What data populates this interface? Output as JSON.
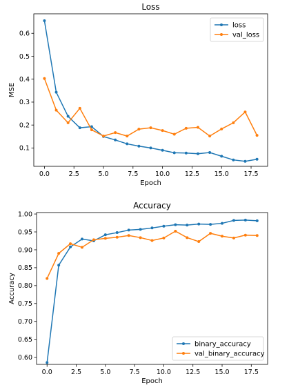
{
  "chart_data": [
    {
      "type": "line",
      "title": "Loss",
      "xlabel": "Epoch",
      "ylabel": "MSE",
      "xlim": [
        -0.9,
        18.9
      ],
      "ylim": [
        0.02,
        0.685
      ],
      "xticks": [
        0,
        2.5,
        5,
        7.5,
        10,
        12.5,
        15,
        17.5
      ],
      "xtick_labels": [
        "0.0",
        "2.5",
        "5.0",
        "7.5",
        "10.0",
        "12.5",
        "15.0",
        "17.5"
      ],
      "yticks": [
        0.1,
        0.2,
        0.3,
        0.4,
        0.5,
        0.6
      ],
      "ytick_labels": [
        "0.1",
        "0.2",
        "0.3",
        "0.4",
        "0.5",
        "0.6"
      ],
      "grid": false,
      "legend": "top-right",
      "x": [
        0,
        1,
        2,
        3,
        4,
        5,
        6,
        7,
        8,
        9,
        10,
        11,
        12,
        13,
        14,
        15,
        16,
        17,
        18
      ],
      "series": [
        {
          "name": "loss",
          "color": "#1f77b4",
          "values": [
            0.655,
            0.343,
            0.238,
            0.188,
            0.193,
            0.15,
            0.135,
            0.118,
            0.108,
            0.1,
            0.09,
            0.079,
            0.078,
            0.075,
            0.08,
            0.064,
            0.048,
            0.042,
            0.051
          ]
        },
        {
          "name": "val_loss",
          "color": "#ff7f0e",
          "values": [
            0.403,
            0.265,
            0.21,
            0.273,
            0.179,
            0.152,
            0.167,
            0.152,
            0.182,
            0.188,
            0.176,
            0.16,
            0.186,
            0.19,
            0.152,
            0.183,
            0.21,
            0.257,
            0.155
          ]
        }
      ]
    },
    {
      "type": "line",
      "title": "Accuracy",
      "xlabel": "Epoch",
      "ylabel": "Accuracy",
      "xlim": [
        -0.9,
        18.9
      ],
      "ylim": [
        0.58,
        1.004
      ],
      "xticks": [
        0,
        2.5,
        5,
        7.5,
        10,
        12.5,
        15,
        17.5
      ],
      "xtick_labels": [
        "0.0",
        "2.5",
        "5.0",
        "7.5",
        "10.0",
        "12.5",
        "15.0",
        "17.5"
      ],
      "yticks": [
        0.6,
        0.65,
        0.7,
        0.75,
        0.8,
        0.85,
        0.9,
        0.95,
        1.0
      ],
      "ytick_labels": [
        "0.60",
        "0.65",
        "0.70",
        "0.75",
        "0.80",
        "0.85",
        "0.90",
        "0.95",
        "1.00"
      ],
      "grid": false,
      "legend": "bottom-right",
      "x": [
        0,
        1,
        2,
        3,
        4,
        5,
        6,
        7,
        8,
        9,
        10,
        11,
        12,
        13,
        14,
        15,
        16,
        17,
        18
      ],
      "series": [
        {
          "name": "binary_accuracy",
          "color": "#1f77b4",
          "values": [
            0.585,
            0.857,
            0.908,
            0.93,
            0.925,
            0.942,
            0.948,
            0.955,
            0.957,
            0.961,
            0.966,
            0.97,
            0.969,
            0.972,
            0.971,
            0.974,
            0.982,
            0.983,
            0.981
          ]
        },
        {
          "name": "val_binary_accuracy",
          "color": "#ff7f0e",
          "values": [
            0.82,
            0.89,
            0.917,
            0.907,
            0.928,
            0.932,
            0.935,
            0.94,
            0.934,
            0.926,
            0.933,
            0.952,
            0.934,
            0.923,
            0.946,
            0.938,
            0.933,
            0.941,
            0.94
          ]
        }
      ]
    }
  ]
}
